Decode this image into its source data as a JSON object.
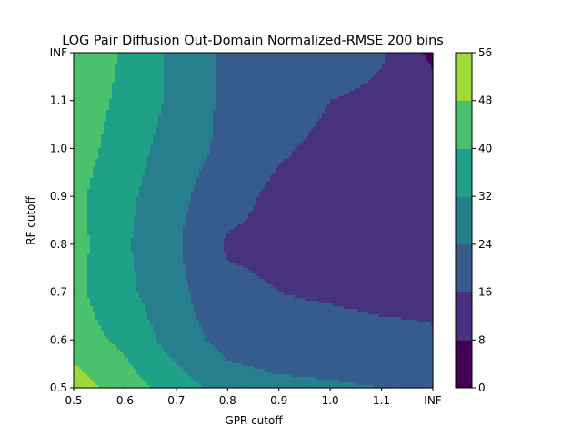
{
  "chart_data": {
    "type": "contour",
    "title": "LOG Pair Diffusion Out-Domain Normalized-RMSE 200 bins",
    "xlabel": "GPR cutoff",
    "ylabel": "RF cutoff",
    "x_ticks": [
      "0.5",
      "0.6",
      "0.7",
      "0.8",
      "0.9",
      "1.0",
      "1.1",
      "INF"
    ],
    "y_ticks": [
      "0.5",
      "0.6",
      "0.7",
      "0.8",
      "0.9",
      "1.0",
      "1.1",
      "INF"
    ],
    "levels": [
      0,
      8,
      16,
      24,
      32,
      40,
      48,
      56
    ],
    "colorbar_ticks": [
      "0",
      "8",
      "16",
      "24",
      "32",
      "40",
      "48",
      "56"
    ],
    "level_colors": [
      "#440154",
      "#46327e",
      "#365c8d",
      "#277f8e",
      "#1fa187",
      "#4ac16d",
      "#a0da39",
      "#d5e21a"
    ],
    "colormap": "viridis",
    "grid": [
      [
        52.0,
        44.0,
        36.0,
        28.0,
        26.0,
        25.0,
        24.0,
        23.0
      ],
      [
        44.0,
        38.0,
        28.0,
        21.0,
        19.0,
        19.0,
        18.0,
        17.0
      ],
      [
        42.0,
        34.0,
        26.0,
        18.0,
        16.0,
        15.0,
        14.0,
        14.0
      ],
      [
        43.0,
        33.0,
        25.0,
        15.0,
        14.0,
        14.0,
        14.0,
        14.0
      ],
      [
        42.0,
        34.0,
        26.0,
        19.0,
        14.0,
        14.0,
        14.0,
        14.0
      ],
      [
        44.0,
        36.0,
        28.0,
        22.0,
        17.0,
        14.0,
        14.0,
        14.0
      ],
      [
        45.0,
        38.0,
        30.0,
        22.0,
        20.0,
        16.0,
        14.0,
        12.0
      ],
      [
        46.0,
        39.0,
        30.0,
        22.0,
        22.0,
        21.0,
        17.0,
        6.0
      ]
    ]
  }
}
